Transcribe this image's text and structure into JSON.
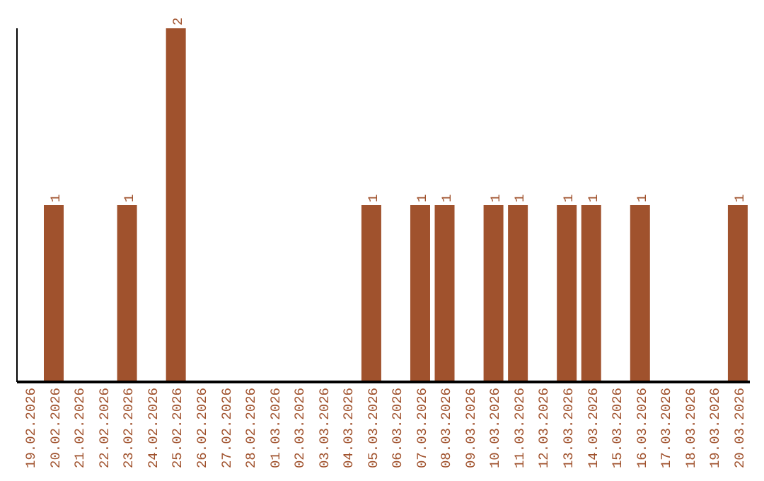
{
  "chart_data": {
    "type": "bar",
    "categories": [
      "19.02.2026",
      "20.02.2026",
      "21.02.2026",
      "22.02.2026",
      "23.02.2026",
      "24.02.2026",
      "25.02.2026",
      "26.02.2026",
      "27.02.2026",
      "28.02.2026",
      "01.03.2026",
      "02.03.2026",
      "03.03.2026",
      "04.03.2026",
      "05.03.2026",
      "06.03.2026",
      "07.03.2026",
      "08.03.2026",
      "09.03.2026",
      "10.03.2026",
      "11.03.2026",
      "12.03.2026",
      "13.03.2026",
      "14.03.2026",
      "15.03.2026",
      "16.03.2026",
      "17.03.2026",
      "18.03.2026",
      "19.03.2026",
      "20.03.2026"
    ],
    "values": [
      0,
      1,
      0,
      0,
      1,
      0,
      2,
      0,
      0,
      0,
      0,
      0,
      0,
      0,
      1,
      0,
      1,
      1,
      0,
      1,
      1,
      0,
      1,
      1,
      0,
      1,
      0,
      0,
      0,
      1
    ],
    "value_labels": [
      null,
      "1",
      null,
      null,
      "1",
      null,
      "2",
      null,
      null,
      null,
      null,
      null,
      null,
      null,
      "1",
      null,
      "1",
      "1",
      null,
      "1",
      "1",
      null,
      "1",
      "1",
      null,
      "1",
      null,
      null,
      null,
      "1"
    ],
    "color": "#a0522d",
    "tick_labels": "x"
  }
}
